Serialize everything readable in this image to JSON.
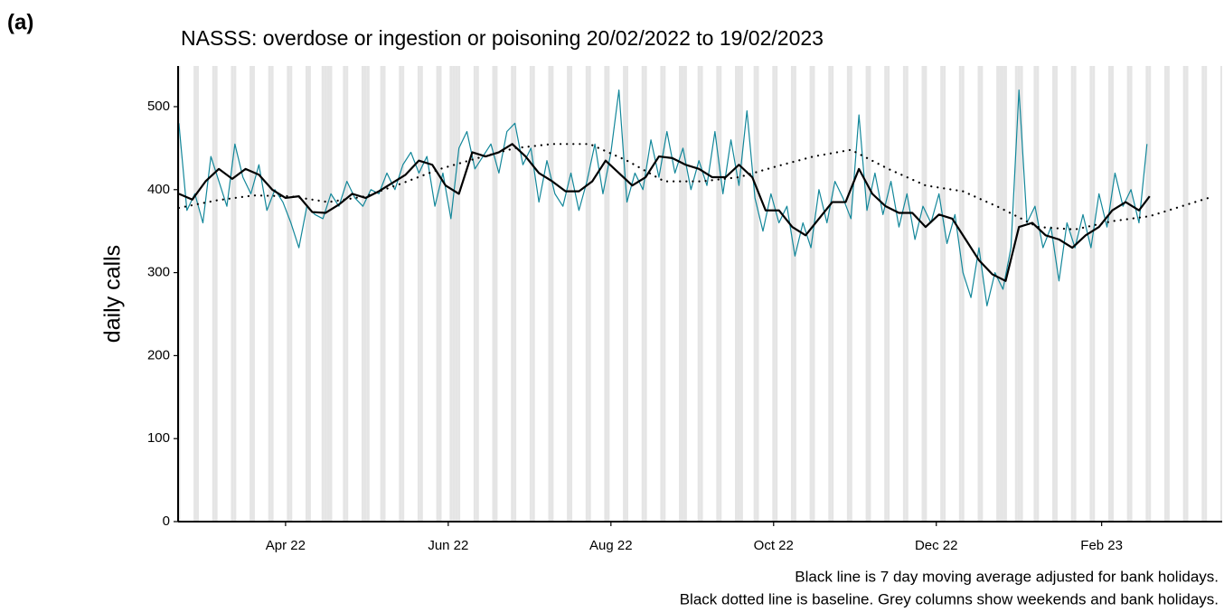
{
  "panel_label": "(a)",
  "chart_data": {
    "type": "line",
    "title": "NASSS: overdose or ingestion or poisoning 20/02/2022 to 19/02/2023",
    "y_label": "daily calls",
    "notes": [
      "Black line is 7 day moving average adjusted for bank holidays.",
      "Black dotted line is baseline. Grey columns show weekends and bank holidays."
    ],
    "xlim": [
      -0.3,
      391.2
    ],
    "ylim": [
      0,
      549
    ],
    "xticks": [
      {
        "value": 40,
        "label": "Apr 22"
      },
      {
        "value": 101,
        "label": "Jun 22"
      },
      {
        "value": 162,
        "label": "Aug 22"
      },
      {
        "value": 223,
        "label": "Oct 22"
      },
      {
        "value": 284,
        "label": "Dec 22"
      },
      {
        "value": 346,
        "label": "Feb 23"
      }
    ],
    "yticks": [
      0,
      100,
      200,
      300,
      400,
      500
    ],
    "shade_color": "#e5e5e5",
    "shaded_days": [
      0,
      6,
      7,
      13,
      14,
      20,
      21,
      27,
      28,
      34,
      35,
      41,
      42,
      48,
      49,
      54,
      55,
      56,
      57,
      62,
      63,
      69,
      70,
      71,
      76,
      77,
      83,
      84,
      90,
      91,
      97,
      98,
      102,
      103,
      104,
      105,
      111,
      112,
      118,
      119,
      125,
      126,
      132,
      133,
      139,
      140,
      146,
      147,
      153,
      154,
      160,
      161,
      167,
      168,
      174,
      175,
      181,
      182,
      188,
      189,
      190,
      195,
      196,
      202,
      203,
      209,
      210,
      211,
      216,
      217,
      223,
      224,
      230,
      231,
      237,
      238,
      244,
      245,
      251,
      252,
      258,
      259,
      265,
      266,
      272,
      273,
      279,
      280,
      286,
      287,
      293,
      294,
      300,
      301,
      307,
      308,
      309,
      310,
      314,
      315,
      316,
      321,
      322,
      328,
      329,
      335,
      336,
      342,
      343,
      349,
      350,
      356,
      357,
      363,
      364,
      370,
      371,
      377,
      378,
      384,
      385,
      391
    ],
    "series": [
      {
        "color": "#13879a",
        "style": "solid",
        "width": 1.2,
        "x": [
          0,
          3,
          6,
          9,
          12,
          15,
          18,
          21,
          24,
          27,
          30,
          33,
          36,
          39,
          42,
          45,
          48,
          51,
          54,
          57,
          60,
          63,
          66,
          69,
          72,
          75,
          78,
          81,
          84,
          87,
          90,
          93,
          96,
          99,
          102,
          105,
          108,
          111,
          114,
          117,
          120,
          123,
          126,
          129,
          132,
          135,
          138,
          141,
          144,
          147,
          150,
          153,
          156,
          159,
          162,
          165,
          168,
          171,
          174,
          177,
          180,
          183,
          186,
          189,
          192,
          195,
          198,
          201,
          204,
          207,
          210,
          213,
          216,
          219,
          222,
          225,
          228,
          231,
          234,
          237,
          240,
          243,
          246,
          249,
          252,
          255,
          258,
          261,
          264,
          267,
          270,
          273,
          276,
          279,
          282,
          285,
          288,
          291,
          294,
          297,
          300,
          303,
          306,
          309,
          312,
          315,
          318,
          321,
          324,
          327,
          330,
          333,
          336,
          339,
          342,
          345,
          348,
          351,
          354,
          357,
          360,
          363
        ],
        "values": [
          480,
          375,
          395,
          360,
          440,
          410,
          380,
          455,
          415,
          395,
          430,
          375,
          400,
          385,
          360,
          330,
          380,
          370,
          365,
          395,
          380,
          410,
          390,
          380,
          400,
          395,
          420,
          400,
          430,
          445,
          420,
          440,
          380,
          420,
          365,
          450,
          470,
          425,
          440,
          455,
          420,
          470,
          480,
          430,
          450,
          385,
          435,
          395,
          380,
          420,
          375,
          410,
          455,
          395,
          445,
          520,
          385,
          420,
          400,
          460,
          415,
          470,
          420,
          450,
          400,
          435,
          405,
          470,
          395,
          460,
          405,
          495,
          390,
          350,
          395,
          360,
          380,
          320,
          360,
          330,
          400,
          360,
          410,
          390,
          365,
          490,
          375,
          420,
          370,
          410,
          355,
          395,
          340,
          380,
          360,
          395,
          335,
          370,
          300,
          270,
          330,
          260,
          300,
          280,
          330,
          520,
          360,
          380,
          330,
          355,
          290,
          360,
          330,
          370,
          330,
          395,
          355,
          420,
          380,
          400,
          360,
          455
        ]
      },
      {
        "color": "#000000",
        "style": "solid",
        "width": 2.2,
        "x": [
          0,
          5,
          10,
          15,
          20,
          25,
          30,
          35,
          40,
          45,
          50,
          55,
          60,
          65,
          70,
          75,
          80,
          85,
          90,
          95,
          100,
          105,
          110,
          115,
          120,
          125,
          130,
          135,
          140,
          145,
          150,
          155,
          160,
          165,
          170,
          175,
          180,
          185,
          190,
          195,
          200,
          205,
          210,
          215,
          220,
          225,
          230,
          235,
          240,
          245,
          250,
          255,
          260,
          265,
          270,
          275,
          280,
          285,
          290,
          295,
          300,
          305,
          310,
          315,
          320,
          325,
          330,
          335,
          340,
          345,
          350,
          355,
          360,
          364
        ],
        "values": [
          395,
          388,
          410,
          425,
          413,
          425,
          418,
          400,
          390,
          392,
          373,
          372,
          382,
          395,
          390,
          398,
          408,
          418,
          435,
          430,
          405,
          395,
          445,
          440,
          445,
          455,
          440,
          420,
          410,
          398,
          398,
          410,
          435,
          420,
          405,
          415,
          440,
          438,
          430,
          425,
          415,
          415,
          430,
          415,
          375,
          375,
          355,
          345,
          365,
          385,
          385,
          425,
          395,
          380,
          372,
          372,
          355,
          370,
          365,
          340,
          315,
          298,
          290,
          355,
          360,
          345,
          340,
          330,
          345,
          355,
          375,
          385,
          375,
          392
        ]
      },
      {
        "color": "#000000",
        "style": "dotted",
        "width": 2.2,
        "x": [
          0,
          14,
          28,
          42,
          56,
          70,
          84,
          98,
          112,
          126,
          140,
          154,
          168,
          182,
          196,
          210,
          224,
          238,
          252,
          266,
          280,
          294,
          308,
          322,
          336,
          350,
          364,
          378,
          386
        ],
        "values": [
          378,
          387,
          393,
          392,
          385,
          392,
          408,
          425,
          438,
          450,
          455,
          455,
          435,
          410,
          410,
          415,
          428,
          440,
          448,
          425,
          405,
          398,
          378,
          355,
          352,
          362,
          368,
          382,
          390
        ]
      }
    ]
  }
}
